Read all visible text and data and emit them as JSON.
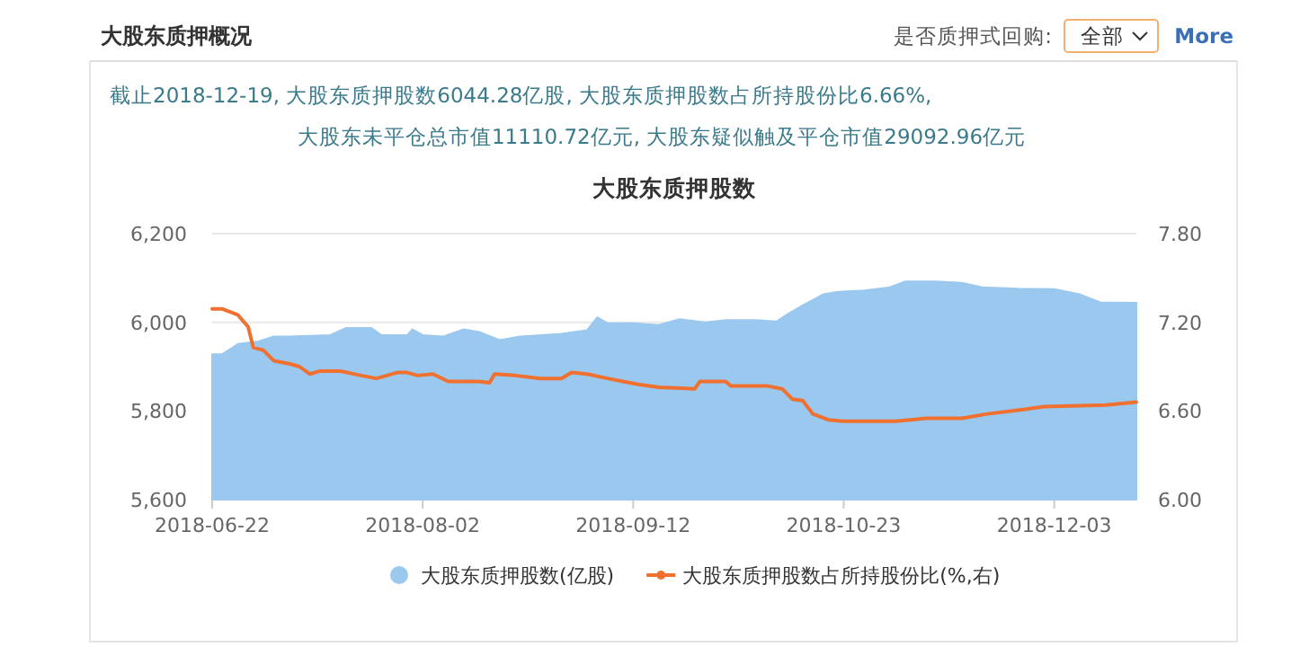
{
  "chart_data": {
    "type": "area",
    "title": "大股东质押股数",
    "annotations": [
      "大股东质押概况",
      "是否质押式回购:",
      "全部",
      "More",
      "截止2018-12-19, 大股东质押股数6044.28亿股, 大股东质押股数占所持股份比6.66%,",
      "大股东未平仓总市值11110.72亿元, 大股东疑似触及平仓市值29092.96亿元"
    ],
    "xlim": [
      "2018-06-22",
      "2018-12-19"
    ],
    "xticks": [
      "2018-06-22",
      "2018-08-02",
      "2018-09-12",
      "2018-10-23",
      "2018-12-03"
    ],
    "ylim": [
      5600,
      6200
    ],
    "yticks": [
      {
        "value": 5600,
        "label": "5,600"
      },
      {
        "value": 5800,
        "label": "5,800"
      },
      {
        "value": 6000,
        "label": "6,000"
      },
      {
        "value": 6200,
        "label": "6,200"
      }
    ],
    "y2lim": [
      6.0,
      7.8
    ],
    "y2ticks": [
      {
        "value": 6.0,
        "label": "6.00"
      },
      {
        "value": 6.6,
        "label": "6.60"
      },
      {
        "value": 7.2,
        "label": "7.20"
      },
      {
        "value": 7.8,
        "label": "7.80"
      }
    ],
    "grid": "y",
    "legend": "bottom",
    "marker": "none",
    "series": [
      {
        "name": "大股东质押股数(亿股)",
        "color": "#9ac8ee",
        "x": [
          "2018-06-22",
          "2018-06-24",
          "2018-06-27",
          "2018-07-01",
          "2018-07-04",
          "2018-07-07",
          "2018-07-15",
          "2018-07-18",
          "2018-07-23",
          "2018-07-25",
          "2018-07-30",
          "2018-07-31",
          "2018-08-02",
          "2018-08-06",
          "2018-08-10",
          "2018-08-13",
          "2018-08-17",
          "2018-08-21",
          "2018-08-29",
          "2018-09-03",
          "2018-09-05",
          "2018-09-07",
          "2018-09-12",
          "2018-09-17",
          "2018-09-21",
          "2018-09-26",
          "2018-09-30",
          "2018-10-06",
          "2018-10-10",
          "2018-10-12",
          "2018-10-15",
          "2018-10-19",
          "2018-10-22",
          "2018-10-27",
          "2018-11-01",
          "2018-11-04",
          "2018-11-10",
          "2018-11-15",
          "2018-11-19",
          "2018-11-26",
          "2018-12-03",
          "2018-12-08",
          "2018-12-12",
          "2018-12-19"
        ],
        "values": [
          5928,
          5928,
          5951,
          5957,
          5968,
          5968,
          5971,
          5987,
          5987,
          5971,
          5971,
          5984,
          5971,
          5968,
          5984,
          5978,
          5960,
          5968,
          5974,
          5982,
          6011,
          5998,
          5998,
          5994,
          6007,
          6000,
          6005,
          6005,
          6002,
          6018,
          6038,
          6063,
          6069,
          6072,
          6079,
          6092,
          6092,
          6089,
          6079,
          6076,
          6075,
          6063,
          6045,
          6044
        ]
      },
      {
        "name": "大股东质押股数占所持股份比(%,右)",
        "type": "line",
        "axis": "y2",
        "color": "#f07030",
        "line_style": "solid",
        "x": [
          "2018-06-22",
          "2018-06-24",
          "2018-06-27",
          "2018-06-29",
          "2018-06-30",
          "2018-07-02",
          "2018-07-04",
          "2018-07-07",
          "2018-07-09",
          "2018-07-11",
          "2018-07-13",
          "2018-07-17",
          "2018-07-21",
          "2018-07-24",
          "2018-07-28",
          "2018-07-30",
          "2018-08-01",
          "2018-08-04",
          "2018-08-07",
          "2018-08-13",
          "2018-08-15",
          "2018-08-16",
          "2018-08-20",
          "2018-08-25",
          "2018-08-29",
          "2018-08-31",
          "2018-09-03",
          "2018-09-07",
          "2018-09-10",
          "2018-09-13",
          "2018-09-17",
          "2018-09-24",
          "2018-09-25",
          "2018-09-30",
          "2018-10-01",
          "2018-10-08",
          "2018-10-11",
          "2018-10-13",
          "2018-10-15",
          "2018-10-17",
          "2018-10-20",
          "2018-10-23",
          "2018-11-02",
          "2018-11-08",
          "2018-11-15",
          "2018-11-20",
          "2018-11-27",
          "2018-12-01",
          "2018-12-13",
          "2018-12-19"
        ],
        "values": [
          7.29,
          7.29,
          7.25,
          7.17,
          7.03,
          7.01,
          6.94,
          6.92,
          6.9,
          6.85,
          6.87,
          6.87,
          6.84,
          6.82,
          6.86,
          6.86,
          6.84,
          6.85,
          6.8,
          6.8,
          6.79,
          6.85,
          6.84,
          6.82,
          6.82,
          6.86,
          6.85,
          6.82,
          6.8,
          6.78,
          6.76,
          6.75,
          6.8,
          6.8,
          6.77,
          6.77,
          6.75,
          6.68,
          6.67,
          6.58,
          6.54,
          6.53,
          6.53,
          6.55,
          6.55,
          6.58,
          6.61,
          6.63,
          6.64,
          6.66
        ]
      }
    ]
  }
}
